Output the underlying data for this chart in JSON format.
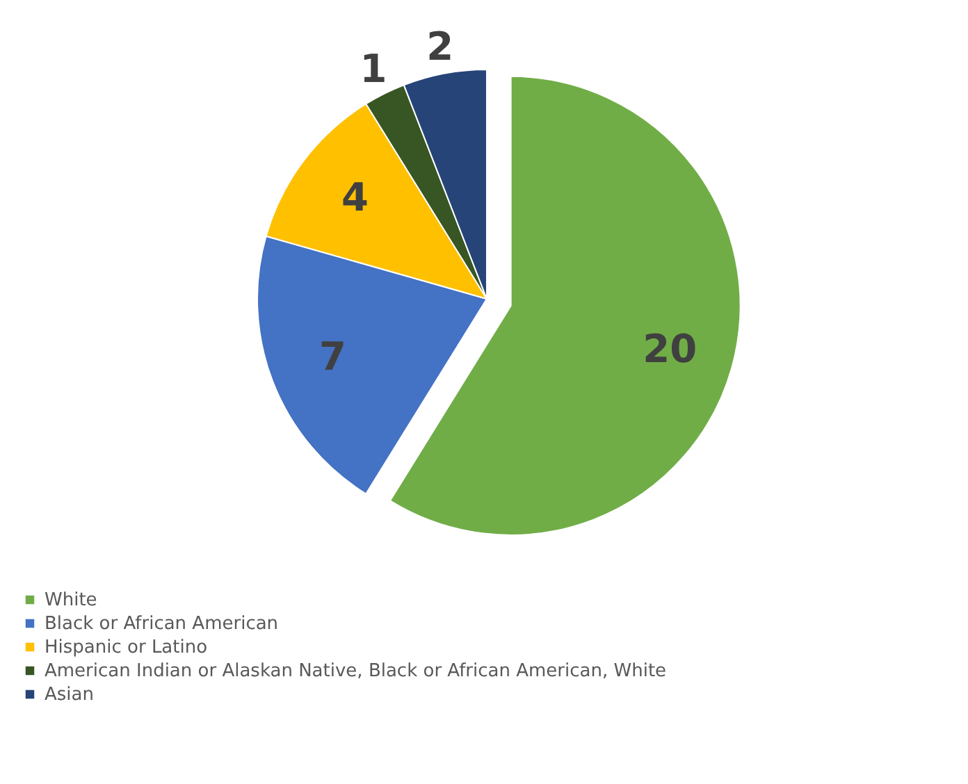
{
  "chart_data": {
    "type": "pie",
    "categories": [
      "White",
      "Black or African American",
      "Hispanic or Latino",
      "American Indian or Alaskan Native, Black or African American, White",
      "Asian"
    ],
    "values": [
      20,
      7,
      4,
      1,
      2
    ],
    "colors": [
      "#70ad47",
      "#4472c4",
      "#ffc000",
      "#375623",
      "#264478"
    ],
    "data_labels": true,
    "legend": "bottom"
  }
}
